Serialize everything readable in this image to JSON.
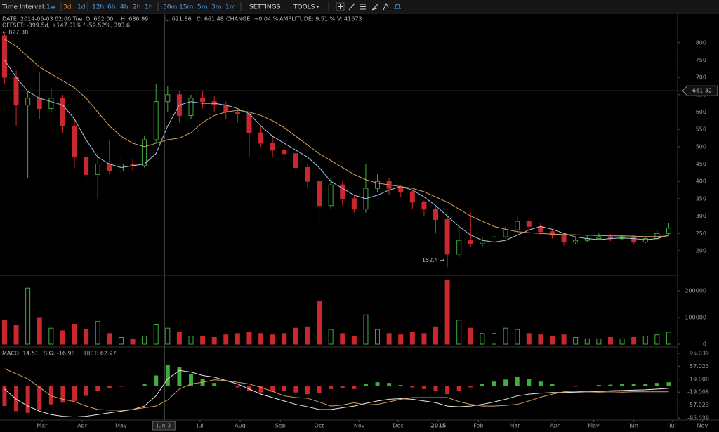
{
  "chart_data": {
    "type": "candlestick",
    "toolbar_label": "Time Interval:",
    "intervals": [
      "1w",
      "3d",
      "1d",
      "12h",
      "6h",
      "4h",
      "2h",
      "1h",
      "30m",
      "15m",
      "5m",
      "3m",
      "1m"
    ],
    "selected_interval": 1,
    "menus": [
      "SETTINGS",
      "TOOLS"
    ],
    "info": [
      "DATE: 2014-06-03 02:00 Tue",
      "O: 662.00",
      "H: 680.99",
      "L: 621.86",
      "C: 661.48",
      "CHANGE: +0.04 %",
      "AMPLITUDE: 9.51 %",
      "V: 41673"
    ],
    "offset": "OFFSET: -399.5d, +147.01% / -59.52%, 393.6",
    "max_label": "← 827.38",
    "min_label": "152.4 →",
    "crosshair": {
      "x": 153.5,
      "price": 661.32
    },
    "up_color": "#3fae3f",
    "down_color": "#c8282e",
    "xlim": [
      26.5,
      581.8
    ],
    "xticks": [
      {
        "value": 59,
        "label": "Mar"
      },
      {
        "value": 90,
        "label": "Apr"
      },
      {
        "value": 120,
        "label": "May"
      },
      {
        "value": 153,
        "label": "Jun 3"
      },
      {
        "value": 181,
        "label": "Jul"
      },
      {
        "value": 212,
        "label": "Aug"
      },
      {
        "value": 243,
        "label": "Sep"
      },
      {
        "value": 273,
        "label": "Oct"
      },
      {
        "value": 304,
        "label": "Nov"
      },
      {
        "value": 334,
        "label": "Dec"
      },
      {
        "value": 365,
        "label": "2015"
      },
      {
        "value": 396,
        "label": "Feb"
      },
      {
        "value": 424,
        "label": "Mar"
      },
      {
        "value": 455,
        "label": "Apr"
      },
      {
        "value": 485,
        "label": "May"
      },
      {
        "value": 516,
        "label": "Jun"
      },
      {
        "value": 546,
        "label": "Jul"
      },
      {
        "value": 569,
        "label": "Nov"
      }
    ],
    "ylim": [
      133,
      832
    ],
    "yticks": [
      200,
      250,
      300,
      350,
      400,
      450,
      500,
      550,
      600,
      650,
      700,
      750,
      800
    ],
    "x": [
      30,
      39,
      48,
      57,
      66,
      75,
      84,
      93,
      102,
      111,
      120,
      129,
      138,
      147,
      156,
      165,
      174,
      183,
      192,
      201,
      210,
      219,
      228,
      237,
      246,
      255,
      264,
      273,
      282,
      291,
      300,
      309,
      318,
      327,
      336,
      345,
      354,
      363,
      372,
      381,
      390,
      399,
      408,
      417,
      426,
      435,
      444,
      453,
      462,
      471,
      480,
      489,
      498,
      507,
      516,
      525,
      534,
      543
    ],
    "open": [
      820,
      700,
      620,
      640,
      610,
      640,
      560,
      470,
      420,
      450,
      430,
      450,
      445,
      520,
      630,
      650,
      590,
      640,
      630,
      620,
      600,
      595,
      540,
      510,
      490,
      480,
      440,
      400,
      330,
      390,
      350,
      320,
      380,
      400,
      380,
      370,
      340,
      320,
      290,
      190,
      230,
      220,
      225,
      240,
      260,
      285,
      270,
      255,
      245,
      225,
      230,
      235,
      240,
      235,
      240,
      225,
      235,
      250
    ],
    "high": [
      827.38,
      720,
      660,
      715,
      670,
      650,
      580,
      480,
      470,
      520,
      470,
      465,
      530,
      680,
      675,
      660,
      650,
      660,
      645,
      630,
      610,
      600,
      560,
      530,
      500,
      490,
      450,
      410,
      410,
      400,
      360,
      450,
      420,
      410,
      390,
      375,
      345,
      325,
      300,
      260,
      310,
      240,
      250,
      270,
      300,
      295,
      280,
      260,
      250,
      240,
      245,
      250,
      248,
      245,
      245,
      240,
      260,
      280
    ],
    "low": [
      680,
      560,
      410,
      580,
      600,
      540,
      440,
      400,
      350,
      420,
      420,
      430,
      440,
      510,
      600,
      570,
      580,
      610,
      600,
      580,
      570,
      470,
      500,
      470,
      460,
      420,
      380,
      280,
      320,
      330,
      310,
      310,
      370,
      360,
      355,
      320,
      300,
      250,
      152.4,
      180,
      210,
      210,
      220,
      235,
      255,
      260,
      245,
      235,
      215,
      220,
      225,
      230,
      228,
      230,
      220,
      222,
      230,
      245
    ],
    "close": [
      700,
      620,
      640,
      610,
      640,
      560,
      470,
      420,
      450,
      430,
      450,
      445,
      520,
      630,
      650,
      590,
      640,
      630,
      620,
      600,
      595,
      540,
      510,
      490,
      480,
      440,
      400,
      330,
      390,
      350,
      320,
      380,
      400,
      380,
      370,
      340,
      320,
      290,
      190,
      230,
      220,
      225,
      240,
      260,
      285,
      270,
      255,
      245,
      225,
      230,
      235,
      240,
      235,
      240,
      225,
      235,
      250,
      265
    ],
    "series": [
      {
        "color": "#a9c8e8",
        "values": [
          750,
          700,
          660,
          640,
          630,
          620,
          580,
          520,
          470,
          450,
          440,
          445,
          450,
          480,
          560,
          620,
          630,
          625,
          625,
          620,
          610,
          595,
          560,
          530,
          510,
          490,
          470,
          440,
          400,
          380,
          360,
          350,
          360,
          375,
          385,
          375,
          355,
          330,
          300,
          270,
          245,
          230,
          225,
          230,
          245,
          260,
          270,
          262,
          250,
          240,
          235,
          232,
          235,
          237,
          235,
          232,
          235,
          245
        ]
      },
      {
        "color": "#d9a15a",
        "values": [
          810,
          790,
          760,
          730,
          710,
          690,
          670,
          640,
          600,
          560,
          530,
          510,
          500,
          510,
          520,
          525,
          540,
          570,
          590,
          600,
          605,
          600,
          590,
          575,
          555,
          530,
          505,
          480,
          460,
          440,
          420,
          405,
          395,
          390,
          385,
          380,
          370,
          355,
          340,
          320,
          300,
          285,
          270,
          262,
          255,
          252,
          250,
          248,
          247,
          246,
          245,
          244,
          243,
          243,
          242,
          241,
          241,
          243
        ]
      }
    ],
    "volume": {
      "ylim": [
        0,
        250000
      ],
      "yticks": [
        0,
        100000,
        200000
      ],
      "values": [
        90000,
        70000,
        210000,
        100000,
        60000,
        50000,
        75000,
        55000,
        85000,
        40000,
        25000,
        20000,
        30000,
        75000,
        60000,
        45000,
        30000,
        30000,
        25000,
        35000,
        40000,
        45000,
        40000,
        35000,
        40000,
        60000,
        65000,
        160000,
        55000,
        40000,
        30000,
        110000,
        55000,
        40000,
        35000,
        45000,
        40000,
        65000,
        240000,
        90000,
        60000,
        40000,
        40000,
        60000,
        55000,
        40000,
        35000,
        30000,
        35000,
        25000,
        20000,
        20000,
        25000,
        20000,
        25000,
        30000,
        35000,
        45000
      ]
    },
    "macd": {
      "ylim": [
        -99,
        111.5
      ],
      "yticks": [
        95.039,
        57.023,
        19.008,
        -19.008,
        -57.023,
        -95.039
      ],
      "legend": [
        "MACD: 14.51",
        "SIG: -16.98",
        "HIST: 62.97"
      ],
      "line_color": "#e8e8e8",
      "signal_color": "#d9a15a",
      "macd": [
        -10,
        -40,
        -60,
        -75,
        -85,
        -90,
        -92,
        -90,
        -85,
        -80,
        -75,
        -70,
        -60,
        -30,
        20,
        45,
        40,
        30,
        25,
        15,
        5,
        -10,
        -25,
        -35,
        -45,
        -55,
        -62,
        -70,
        -70,
        -65,
        -60,
        -52,
        -45,
        -40,
        -38,
        -40,
        -45,
        -50,
        -60,
        -62,
        -60,
        -55,
        -48,
        -40,
        -30,
        -25,
        -22,
        -20,
        -20,
        -19,
        -18,
        -17,
        -15,
        -14,
        -13,
        -12,
        -10,
        -8
      ],
      "signal": [
        50,
        35,
        20,
        -5,
        -30,
        -40,
        -47,
        -60,
        -70,
        -72,
        -72,
        -70,
        -65,
        -60,
        -42,
        -10,
        5,
        10,
        17,
        15,
        10,
        5,
        -5,
        -17,
        -30,
        -35,
        -37,
        -48,
        -60,
        -57,
        -50,
        -57,
        -55,
        -48,
        -40,
        -35,
        -35,
        -35,
        -35,
        -47,
        -55,
        -60,
        -60,
        -58,
        -55,
        -45,
        -34,
        -25,
        -18,
        -16,
        -18,
        -19,
        -18,
        -19,
        -18,
        -18,
        -18,
        -18
      ],
      "hist": [
        -60,
        -75,
        -80,
        -70,
        -55,
        -50,
        -45,
        -30,
        -15,
        -8,
        -3,
        0,
        5,
        30,
        62,
        55,
        35,
        20,
        8,
        0,
        -5,
        -15,
        -20,
        -18,
        -15,
        -20,
        -25,
        -22,
        -10,
        -8,
        -10,
        5,
        10,
        8,
        2,
        -5,
        -10,
        -15,
        -25,
        -15,
        -5,
        5,
        12,
        18,
        25,
        20,
        12,
        5,
        -2,
        -3,
        0,
        2,
        3,
        5,
        5,
        6,
        8,
        10
      ]
    }
  }
}
